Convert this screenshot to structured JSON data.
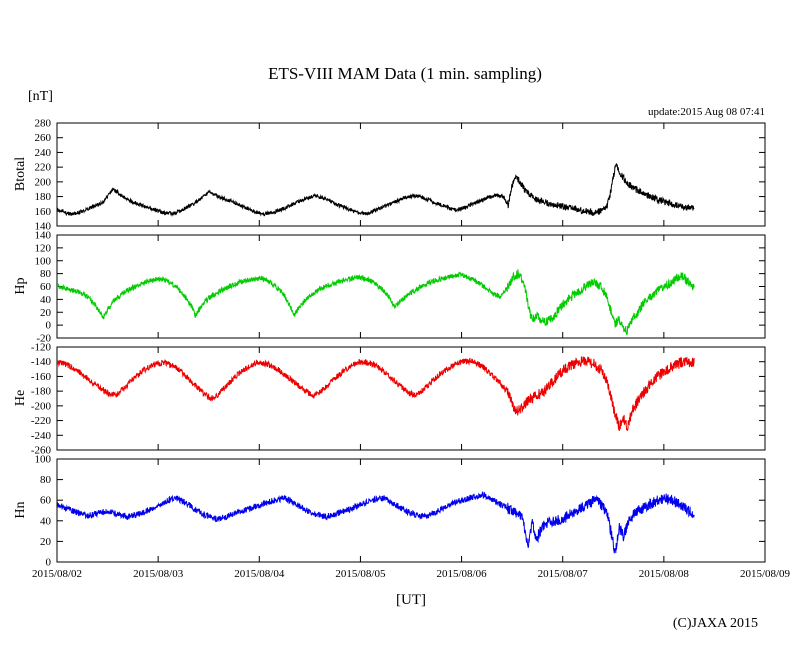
{
  "page": {
    "title": "ETS-VIII MAM Data (1 min. sampling)",
    "unit_label": "[nT]",
    "update_text": "update:2015 Aug 08 07:41",
    "xaxis_title": "[UT]",
    "copyright": "(C)JAXA 2015"
  },
  "chart_data": {
    "type": "line",
    "title": "ETS-VIII MAM Data (1 min. sampling)",
    "xlabel": "[UT]",
    "ylabel": "[nT]",
    "grid": false,
    "legend": "none",
    "x_range_days": [
      0,
      7
    ],
    "data_end_day": 6.3,
    "x_tick_labels": [
      "2015/08/02",
      "2015/08/03",
      "2015/08/04",
      "2015/08/05",
      "2015/08/06",
      "2015/08/07",
      "2015/08/08",
      "2015/08/09"
    ],
    "panels": [
      {
        "name": "Btotal",
        "color": "#000000",
        "ylim": [
          140,
          280
        ],
        "ytick_step": 20,
        "noise": 2.5,
        "points": [
          [
            0,
            163
          ],
          [
            0.08,
            158
          ],
          [
            0.15,
            156
          ],
          [
            0.25,
            160
          ],
          [
            0.35,
            166
          ],
          [
            0.45,
            172
          ],
          [
            0.5,
            180
          ],
          [
            0.55,
            190
          ],
          [
            0.6,
            186
          ],
          [
            0.65,
            180
          ],
          [
            0.75,
            173
          ],
          [
            0.85,
            168
          ],
          [
            0.95,
            163
          ],
          [
            1.05,
            158
          ],
          [
            1.15,
            157
          ],
          [
            1.25,
            163
          ],
          [
            1.35,
            170
          ],
          [
            1.45,
            180
          ],
          [
            1.5,
            186
          ],
          [
            1.55,
            183
          ],
          [
            1.65,
            177
          ],
          [
            1.75,
            172
          ],
          [
            1.85,
            166
          ],
          [
            1.95,
            160
          ],
          [
            2.05,
            156
          ],
          [
            2.15,
            159
          ],
          [
            2.25,
            164
          ],
          [
            2.35,
            171
          ],
          [
            2.45,
            177
          ],
          [
            2.55,
            181
          ],
          [
            2.65,
            177
          ],
          [
            2.75,
            170
          ],
          [
            2.85,
            165
          ],
          [
            2.95,
            159
          ],
          [
            3.05,
            157
          ],
          [
            3.15,
            161
          ],
          [
            3.25,
            167
          ],
          [
            3.35,
            173
          ],
          [
            3.45,
            179
          ],
          [
            3.55,
            181
          ],
          [
            3.65,
            177
          ],
          [
            3.75,
            171
          ],
          [
            3.85,
            166
          ],
          [
            3.95,
            162
          ],
          [
            4.05,
            166
          ],
          [
            4.15,
            172
          ],
          [
            4.25,
            178
          ],
          [
            4.35,
            182
          ],
          [
            4.42,
            179
          ],
          [
            4.46,
            168
          ],
          [
            4.5,
            196
          ],
          [
            4.54,
            206
          ],
          [
            4.58,
            200
          ],
          [
            4.62,
            190
          ],
          [
            4.68,
            182
          ],
          [
            4.75,
            176
          ],
          [
            4.85,
            171
          ],
          [
            4.95,
            168
          ],
          [
            5.05,
            165
          ],
          [
            5.15,
            162
          ],
          [
            5.25,
            160
          ],
          [
            5.32,
            158
          ],
          [
            5.38,
            161
          ],
          [
            5.44,
            168
          ],
          [
            5.48,
            190
          ],
          [
            5.52,
            222
          ],
          [
            5.56,
            215
          ],
          [
            5.6,
            205
          ],
          [
            5.66,
            196
          ],
          [
            5.72,
            190
          ],
          [
            5.8,
            184
          ],
          [
            5.9,
            178
          ],
          [
            6.0,
            173
          ],
          [
            6.1,
            169
          ],
          [
            6.2,
            166
          ],
          [
            6.3,
            164
          ]
        ]
      },
      {
        "name": "Hp",
        "color": "#00cc00",
        "ylim": [
          -20,
          140
        ],
        "ytick_step": 20,
        "noise": 4,
        "points": [
          [
            0,
            62
          ],
          [
            0.06,
            58
          ],
          [
            0.12,
            55
          ],
          [
            0.2,
            52
          ],
          [
            0.28,
            46
          ],
          [
            0.35,
            36
          ],
          [
            0.42,
            22
          ],
          [
            0.46,
            12
          ],
          [
            0.5,
            24
          ],
          [
            0.56,
            38
          ],
          [
            0.64,
            48
          ],
          [
            0.72,
            56
          ],
          [
            0.8,
            62
          ],
          [
            0.9,
            68
          ],
          [
            1.0,
            72
          ],
          [
            1.08,
            70
          ],
          [
            1.16,
            62
          ],
          [
            1.24,
            50
          ],
          [
            1.32,
            32
          ],
          [
            1.37,
            14
          ],
          [
            1.42,
            28
          ],
          [
            1.5,
            42
          ],
          [
            1.6,
            52
          ],
          [
            1.7,
            60
          ],
          [
            1.8,
            66
          ],
          [
            1.9,
            70
          ],
          [
            2.0,
            73
          ],
          [
            2.08,
            69
          ],
          [
            2.16,
            60
          ],
          [
            2.24,
            48
          ],
          [
            2.3,
            30
          ],
          [
            2.35,
            16
          ],
          [
            2.4,
            30
          ],
          [
            2.5,
            46
          ],
          [
            2.6,
            56
          ],
          [
            2.7,
            63
          ],
          [
            2.8,
            68
          ],
          [
            2.9,
            72
          ],
          [
            3.0,
            74
          ],
          [
            3.1,
            69
          ],
          [
            3.2,
            58
          ],
          [
            3.28,
            44
          ],
          [
            3.34,
            28
          ],
          [
            3.4,
            38
          ],
          [
            3.5,
            50
          ],
          [
            3.6,
            60
          ],
          [
            3.7,
            67
          ],
          [
            3.8,
            72
          ],
          [
            3.9,
            76
          ],
          [
            4.0,
            78
          ],
          [
            4.1,
            72
          ],
          [
            4.2,
            62
          ],
          [
            4.3,
            50
          ],
          [
            4.38,
            44
          ],
          [
            4.44,
            56
          ],
          [
            4.5,
            72
          ],
          [
            4.56,
            80
          ],
          [
            4.62,
            66
          ],
          [
            4.66,
            28
          ],
          [
            4.7,
            6
          ],
          [
            4.74,
            16
          ],
          [
            4.78,
            8
          ],
          [
            4.84,
            6
          ],
          [
            4.9,
            12
          ],
          [
            4.96,
            24
          ],
          [
            5.05,
            40
          ],
          [
            5.15,
            52
          ],
          [
            5.25,
            62
          ],
          [
            5.32,
            68
          ],
          [
            5.38,
            60
          ],
          [
            5.44,
            44
          ],
          [
            5.48,
            20
          ],
          [
            5.52,
            2
          ],
          [
            5.56,
            10
          ],
          [
            5.6,
            -4
          ],
          [
            5.64,
            -8
          ],
          [
            5.68,
            6
          ],
          [
            5.74,
            20
          ],
          [
            5.8,
            34
          ],
          [
            5.88,
            46
          ],
          [
            5.96,
            55
          ],
          [
            6.05,
            64
          ],
          [
            6.12,
            72
          ],
          [
            6.18,
            76
          ],
          [
            6.24,
            68
          ],
          [
            6.3,
            58
          ]
        ]
      },
      {
        "name": "He",
        "color": "#ee0000",
        "ylim": [
          -260,
          -120
        ],
        "ytick_step": 20,
        "noise": 4,
        "points": [
          [
            0,
            -141
          ],
          [
            0.08,
            -143
          ],
          [
            0.16,
            -148
          ],
          [
            0.25,
            -157
          ],
          [
            0.35,
            -168
          ],
          [
            0.45,
            -178
          ],
          [
            0.52,
            -184
          ],
          [
            0.58,
            -186
          ],
          [
            0.65,
            -178
          ],
          [
            0.75,
            -164
          ],
          [
            0.85,
            -152
          ],
          [
            0.95,
            -144
          ],
          [
            1.05,
            -141
          ],
          [
            1.15,
            -146
          ],
          [
            1.25,
            -156
          ],
          [
            1.35,
            -170
          ],
          [
            1.45,
            -183
          ],
          [
            1.52,
            -190
          ],
          [
            1.58,
            -186
          ],
          [
            1.68,
            -172
          ],
          [
            1.78,
            -158
          ],
          [
            1.88,
            -148
          ],
          [
            1.98,
            -142
          ],
          [
            2.08,
            -143
          ],
          [
            2.18,
            -150
          ],
          [
            2.28,
            -160
          ],
          [
            2.38,
            -172
          ],
          [
            2.48,
            -182
          ],
          [
            2.54,
            -186
          ],
          [
            2.62,
            -179
          ],
          [
            2.72,
            -166
          ],
          [
            2.82,
            -154
          ],
          [
            2.92,
            -145
          ],
          [
            3.0,
            -140
          ],
          [
            3.1,
            -142
          ],
          [
            3.2,
            -150
          ],
          [
            3.3,
            -162
          ],
          [
            3.4,
            -174
          ],
          [
            3.48,
            -183
          ],
          [
            3.54,
            -186
          ],
          [
            3.62,
            -178
          ],
          [
            3.72,
            -165
          ],
          [
            3.82,
            -153
          ],
          [
            3.92,
            -145
          ],
          [
            4.0,
            -140
          ],
          [
            4.1,
            -139
          ],
          [
            4.2,
            -146
          ],
          [
            4.3,
            -158
          ],
          [
            4.4,
            -172
          ],
          [
            4.46,
            -182
          ],
          [
            4.5,
            -198
          ],
          [
            4.55,
            -208
          ],
          [
            4.6,
            -202
          ],
          [
            4.66,
            -192
          ],
          [
            4.74,
            -186
          ],
          [
            4.82,
            -180
          ],
          [
            4.9,
            -166
          ],
          [
            5.0,
            -152
          ],
          [
            5.1,
            -143
          ],
          [
            5.2,
            -139
          ],
          [
            5.3,
            -142
          ],
          [
            5.38,
            -152
          ],
          [
            5.44,
            -166
          ],
          [
            5.48,
            -188
          ],
          [
            5.52,
            -212
          ],
          [
            5.56,
            -228
          ],
          [
            5.6,
            -216
          ],
          [
            5.64,
            -230
          ],
          [
            5.68,
            -210
          ],
          [
            5.74,
            -194
          ],
          [
            5.82,
            -178
          ],
          [
            5.9,
            -164
          ],
          [
            6.0,
            -153
          ],
          [
            6.1,
            -145
          ],
          [
            6.2,
            -140
          ],
          [
            6.3,
            -142
          ]
        ]
      },
      {
        "name": "Hn",
        "color": "#0000ee",
        "ylim": [
          0,
          100
        ],
        "ytick_step": 20,
        "noise": 3,
        "points": [
          [
            0,
            56
          ],
          [
            0.1,
            52
          ],
          [
            0.2,
            48
          ],
          [
            0.3,
            45
          ],
          [
            0.4,
            47
          ],
          [
            0.5,
            50
          ],
          [
            0.6,
            47
          ],
          [
            0.7,
            44
          ],
          [
            0.8,
            46
          ],
          [
            0.9,
            50
          ],
          [
            1.0,
            55
          ],
          [
            1.1,
            60
          ],
          [
            1.18,
            62
          ],
          [
            1.28,
            57
          ],
          [
            1.38,
            50
          ],
          [
            1.48,
            45
          ],
          [
            1.58,
            42
          ],
          [
            1.68,
            44
          ],
          [
            1.78,
            48
          ],
          [
            1.88,
            51
          ],
          [
            1.98,
            54
          ],
          [
            2.08,
            58
          ],
          [
            2.18,
            61
          ],
          [
            2.26,
            62
          ],
          [
            2.36,
            56
          ],
          [
            2.46,
            50
          ],
          [
            2.56,
            46
          ],
          [
            2.66,
            44
          ],
          [
            2.76,
            47
          ],
          [
            2.86,
            50
          ],
          [
            2.96,
            54
          ],
          [
            3.06,
            58
          ],
          [
            3.16,
            61
          ],
          [
            3.24,
            62
          ],
          [
            3.34,
            56
          ],
          [
            3.44,
            50
          ],
          [
            3.54,
            46
          ],
          [
            3.64,
            44
          ],
          [
            3.74,
            48
          ],
          [
            3.84,
            53
          ],
          [
            3.94,
            58
          ],
          [
            4.04,
            61
          ],
          [
            4.14,
            64
          ],
          [
            4.22,
            65
          ],
          [
            4.32,
            60
          ],
          [
            4.42,
            54
          ],
          [
            4.52,
            49
          ],
          [
            4.6,
            45
          ],
          [
            4.66,
            16
          ],
          [
            4.7,
            38
          ],
          [
            4.74,
            22
          ],
          [
            4.8,
            34
          ],
          [
            4.86,
            38
          ],
          [
            4.94,
            40
          ],
          [
            5.04,
            44
          ],
          [
            5.14,
            50
          ],
          [
            5.24,
            56
          ],
          [
            5.32,
            60
          ],
          [
            5.38,
            56
          ],
          [
            5.44,
            46
          ],
          [
            5.48,
            28
          ],
          [
            5.52,
            8
          ],
          [
            5.56,
            34
          ],
          [
            5.6,
            24
          ],
          [
            5.66,
            42
          ],
          [
            5.72,
            48
          ],
          [
            5.8,
            53
          ],
          [
            5.9,
            58
          ],
          [
            6.0,
            62
          ],
          [
            6.08,
            60
          ],
          [
            6.16,
            56
          ],
          [
            6.24,
            50
          ],
          [
            6.3,
            47
          ]
        ]
      }
    ]
  }
}
